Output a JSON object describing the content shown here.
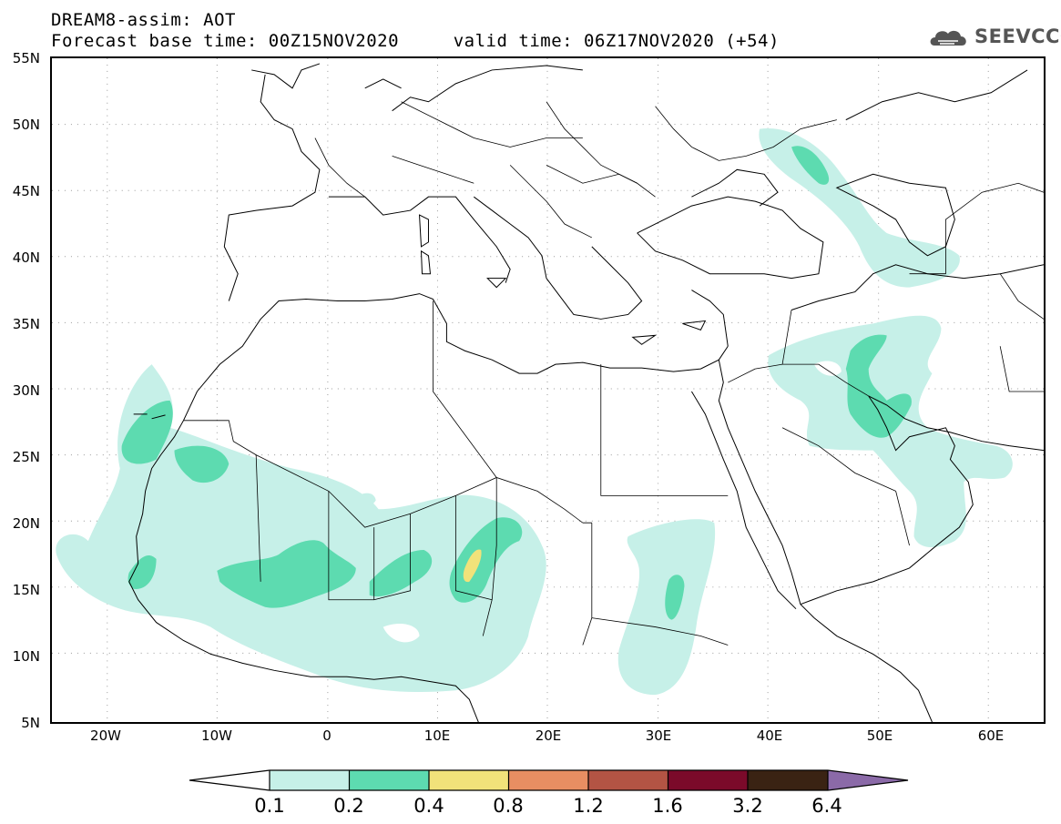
{
  "header": {
    "title": "DREAM8-assim: AOT",
    "subtitle": "Forecast base time: 00Z15NOV2020     valid time: 06Z17NOV2020 (+54)"
  },
  "logo": {
    "text": "SEEVCCC",
    "icon": "cloud-icon"
  },
  "map": {
    "lat_labels": [
      "55N",
      "50N",
      "45N",
      "40N",
      "35N",
      "30N",
      "25N",
      "20N",
      "15N",
      "10N",
      "5N"
    ],
    "lon_labels": [
      "20W",
      "10W",
      "0",
      "10E",
      "20E",
      "30E",
      "40E",
      "50E",
      "60E"
    ],
    "extent": {
      "lon": [
        -25,
        65
      ],
      "lat": [
        5,
        55
      ]
    }
  },
  "colorbar": {
    "labels": [
      "0.1",
      "0.2",
      "0.4",
      "0.8",
      "1.2",
      "1.6",
      "3.2",
      "6.4"
    ],
    "colors": [
      "#c6f0e8",
      "#5ddbb0",
      "#f1e27a",
      "#e88e62",
      "#b35444",
      "#7b0a2a",
      "#3a2313",
      "#8b6aa8"
    ]
  }
}
